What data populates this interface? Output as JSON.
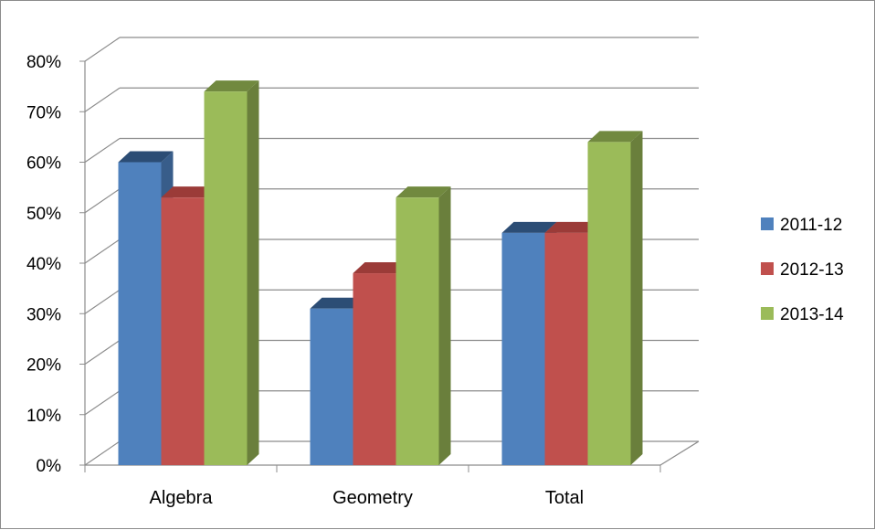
{
  "chart_data": {
    "type": "bar",
    "title": "",
    "xlabel": "",
    "ylabel": "",
    "categories": [
      "Algebra",
      "Geometry",
      "Total"
    ],
    "series": [
      {
        "name": "2011-12",
        "values": [
          60,
          31,
          46
        ],
        "color": "#4f81bd",
        "side": "#385d8a",
        "top": "#2c4d75"
      },
      {
        "name": "2012-13",
        "values": [
          53,
          38,
          46
        ],
        "color": "#c0504d",
        "side": "#8c3836",
        "top": "#9b3b38"
      },
      {
        "name": "2013-14",
        "values": [
          74,
          53,
          64
        ],
        "color": "#9bbb59",
        "side": "#6a7f3c",
        "top": "#71893f"
      }
    ],
    "ylim": [
      0,
      80
    ],
    "y_ticks": [
      "0%",
      "10%",
      "20%",
      "30%",
      "40%",
      "50%",
      "60%",
      "70%",
      "80%"
    ],
    "grid": true,
    "legend_position": "right",
    "style": "3d-clustered-column"
  }
}
